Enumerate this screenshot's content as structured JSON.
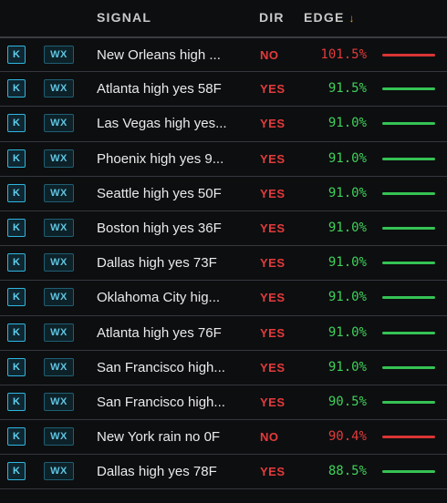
{
  "header": {
    "signal": "SIGNAL",
    "dir": "DIR",
    "edge": "EDGE",
    "sort_icon": "arrow-down-icon"
  },
  "colors": {
    "yes": "#e33b3b",
    "no": "#e33b3b",
    "positive_edge": "#3fd25a",
    "negative_edge": "#e33b3b"
  },
  "rows": [
    {
      "k": "K",
      "wx": "WX",
      "signal": "New Orleans high ...",
      "dir": "NO",
      "edge": "101.5%",
      "tone": "red"
    },
    {
      "k": "K",
      "wx": "WX",
      "signal": "Atlanta high yes 58F",
      "dir": "YES",
      "edge": "91.5%",
      "tone": "green"
    },
    {
      "k": "K",
      "wx": "WX",
      "signal": "Las Vegas high yes...",
      "dir": "YES",
      "edge": "91.0%",
      "tone": "green"
    },
    {
      "k": "K",
      "wx": "WX",
      "signal": "Phoenix high yes 9...",
      "dir": "YES",
      "edge": "91.0%",
      "tone": "green"
    },
    {
      "k": "K",
      "wx": "WX",
      "signal": "Seattle high yes 50F",
      "dir": "YES",
      "edge": "91.0%",
      "tone": "green"
    },
    {
      "k": "K",
      "wx": "WX",
      "signal": "Boston high yes 36F",
      "dir": "YES",
      "edge": "91.0%",
      "tone": "green"
    },
    {
      "k": "K",
      "wx": "WX",
      "signal": "Dallas high yes 73F",
      "dir": "YES",
      "edge": "91.0%",
      "tone": "green"
    },
    {
      "k": "K",
      "wx": "WX",
      "signal": "Oklahoma City hig...",
      "dir": "YES",
      "edge": "91.0%",
      "tone": "green"
    },
    {
      "k": "K",
      "wx": "WX",
      "signal": "Atlanta high yes 76F",
      "dir": "YES",
      "edge": "91.0%",
      "tone": "green"
    },
    {
      "k": "K",
      "wx": "WX",
      "signal": "San Francisco high...",
      "dir": "YES",
      "edge": "91.0%",
      "tone": "green"
    },
    {
      "k": "K",
      "wx": "WX",
      "signal": "San Francisco high...",
      "dir": "YES",
      "edge": "90.5%",
      "tone": "green"
    },
    {
      "k": "K",
      "wx": "WX",
      "signal": "New York rain no 0F",
      "dir": "NO",
      "edge": "90.4%",
      "tone": "red"
    },
    {
      "k": "K",
      "wx": "WX",
      "signal": "Dallas high yes 78F",
      "dir": "YES",
      "edge": "88.5%",
      "tone": "green"
    }
  ]
}
